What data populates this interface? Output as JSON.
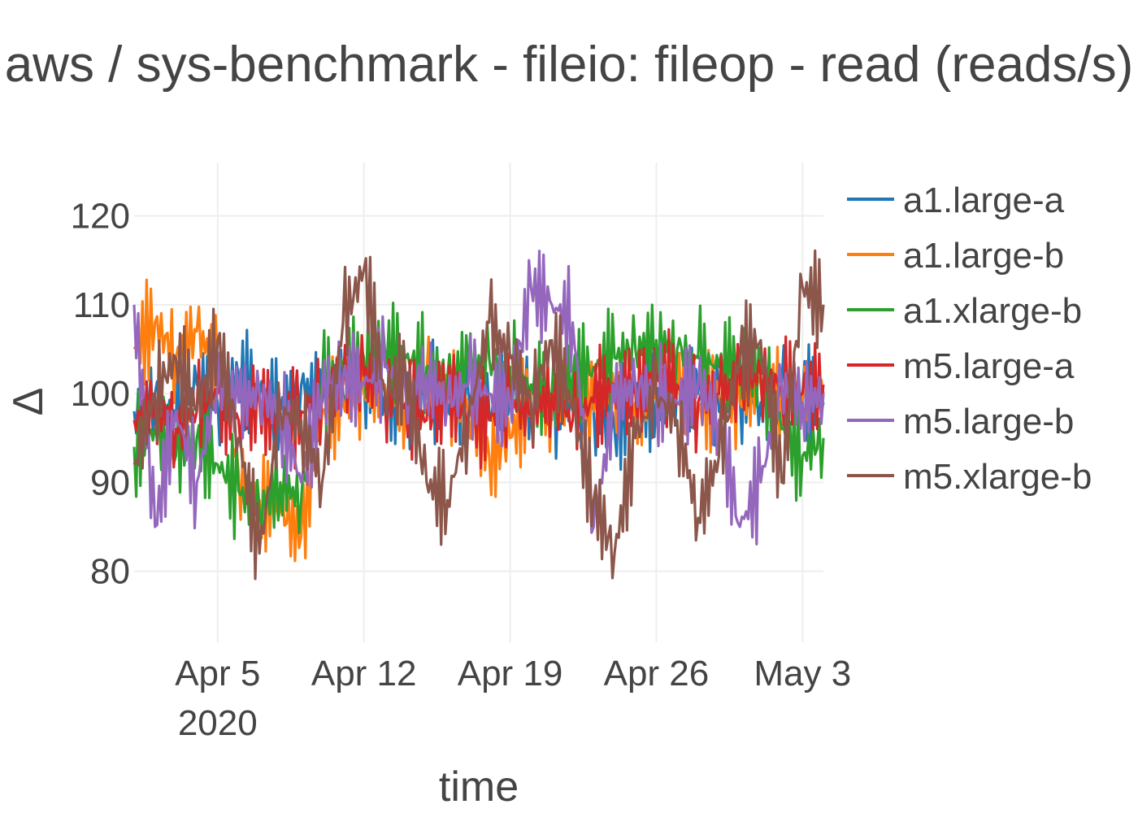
{
  "chart_data": {
    "type": "line",
    "title": "aws / sys-benchmark - fileio: fileop - read (reads/s)",
    "xlabel": "time",
    "ylabel": "Δ",
    "x_range": [
      "2020-04-01",
      "2020-05-04"
    ],
    "ylim": [
      72,
      126
    ],
    "y_ticks": [
      {
        "value": 80,
        "label": "80"
      },
      {
        "value": 90,
        "label": "90"
      },
      {
        "value": 100,
        "label": "100"
      },
      {
        "value": 110,
        "label": "110"
      },
      {
        "value": 120,
        "label": "120"
      }
    ],
    "x_ticks": [
      {
        "date": "2020-04-05",
        "label": "Apr 5",
        "sublabel": "2020"
      },
      {
        "date": "2020-04-12",
        "label": "Apr 12",
        "sublabel": ""
      },
      {
        "date": "2020-04-19",
        "label": "Apr 19",
        "sublabel": ""
      },
      {
        "date": "2020-04-26",
        "label": "Apr 26",
        "sublabel": ""
      },
      {
        "date": "2020-05-03",
        "label": "May 3",
        "sublabel": ""
      }
    ],
    "grid": true,
    "legend_position": "right",
    "series": [
      {
        "name": "a1.large-a",
        "color": "#1f77b4",
        "points": [
          [
            "2020-04-01",
            98
          ],
          [
            "2020-04-02",
            100
          ],
          [
            "2020-04-03",
            97
          ],
          [
            "2020-04-04",
            101
          ],
          [
            "2020-04-05",
            99
          ],
          [
            "2020-04-06",
            102
          ],
          [
            "2020-04-07",
            100
          ],
          [
            "2020-04-08",
            98
          ],
          [
            "2020-04-09",
            101
          ],
          [
            "2020-04-10",
            99
          ],
          [
            "2020-04-11",
            100
          ],
          [
            "2020-04-12",
            102
          ],
          [
            "2020-04-13",
            100
          ],
          [
            "2020-04-14",
            97
          ],
          [
            "2020-04-15",
            101
          ],
          [
            "2020-04-16",
            99
          ],
          [
            "2020-04-17",
            100
          ],
          [
            "2020-04-18",
            98
          ],
          [
            "2020-04-19",
            101
          ],
          [
            "2020-04-20",
            100
          ],
          [
            "2020-04-21",
            97
          ],
          [
            "2020-04-22",
            99
          ],
          [
            "2020-04-23",
            98
          ],
          [
            "2020-04-24",
            96
          ],
          [
            "2020-04-25",
            100
          ],
          [
            "2020-04-26",
            99
          ],
          [
            "2020-04-27",
            101
          ],
          [
            "2020-04-28",
            100
          ],
          [
            "2020-04-29",
            98
          ],
          [
            "2020-04-30",
            100
          ],
          [
            "2020-05-01",
            99
          ],
          [
            "2020-05-02",
            101
          ],
          [
            "2020-05-03",
            100
          ],
          [
            "2020-05-04",
            99
          ]
        ]
      },
      {
        "name": "a1.large-b",
        "color": "#ff7f0e",
        "points": [
          [
            "2020-04-01",
            105
          ],
          [
            "2020-04-02",
            108
          ],
          [
            "2020-04-03",
            104
          ],
          [
            "2020-04-04",
            107
          ],
          [
            "2020-04-05",
            103
          ],
          [
            "2020-04-06",
            91
          ],
          [
            "2020-04-07",
            88
          ],
          [
            "2020-04-08",
            87
          ],
          [
            "2020-04-09",
            84
          ],
          [
            "2020-04-10",
            98
          ],
          [
            "2020-04-11",
            99
          ],
          [
            "2020-04-12",
            100
          ],
          [
            "2020-04-13",
            101
          ],
          [
            "2020-04-14",
            99
          ],
          [
            "2020-04-15",
            102
          ],
          [
            "2020-04-16",
            100
          ],
          [
            "2020-04-17",
            98
          ],
          [
            "2020-04-18",
            93
          ],
          [
            "2020-04-19",
            95
          ],
          [
            "2020-04-20",
            100
          ],
          [
            "2020-04-21",
            99
          ],
          [
            "2020-04-22",
            101
          ],
          [
            "2020-04-23",
            98
          ],
          [
            "2020-04-24",
            100
          ],
          [
            "2020-04-25",
            99
          ],
          [
            "2020-04-26",
            101
          ],
          [
            "2020-04-27",
            100
          ],
          [
            "2020-04-28",
            98
          ],
          [
            "2020-04-29",
            100
          ],
          [
            "2020-04-30",
            99
          ],
          [
            "2020-05-01",
            101
          ],
          [
            "2020-05-02",
            100
          ],
          [
            "2020-05-03",
            99
          ],
          [
            "2020-05-04",
            100
          ]
        ]
      },
      {
        "name": "a1.xlarge-b",
        "color": "#2ca02c",
        "points": [
          [
            "2020-04-01",
            94
          ],
          [
            "2020-04-02",
            96
          ],
          [
            "2020-04-03",
            93
          ],
          [
            "2020-04-04",
            95
          ],
          [
            "2020-04-05",
            92
          ],
          [
            "2020-04-06",
            89
          ],
          [
            "2020-04-07",
            87
          ],
          [
            "2020-04-08",
            90
          ],
          [
            "2020-04-09",
            88
          ],
          [
            "2020-04-10",
            101
          ],
          [
            "2020-04-11",
            103
          ],
          [
            "2020-04-12",
            104
          ],
          [
            "2020-04-13",
            105
          ],
          [
            "2020-04-14",
            104
          ],
          [
            "2020-04-15",
            103
          ],
          [
            "2020-04-16",
            102
          ],
          [
            "2020-04-17",
            103
          ],
          [
            "2020-04-18",
            104
          ],
          [
            "2020-04-19",
            103
          ],
          [
            "2020-04-20",
            101
          ],
          [
            "2020-04-21",
            100
          ],
          [
            "2020-04-22",
            102
          ],
          [
            "2020-04-23",
            103
          ],
          [
            "2020-04-24",
            104
          ],
          [
            "2020-04-25",
            105
          ],
          [
            "2020-04-26",
            106
          ],
          [
            "2020-04-27",
            105
          ],
          [
            "2020-04-28",
            104
          ],
          [
            "2020-04-29",
            103
          ],
          [
            "2020-04-30",
            104
          ],
          [
            "2020-05-01",
            102
          ],
          [
            "2020-05-02",
            96
          ],
          [
            "2020-05-03",
            93
          ],
          [
            "2020-05-04",
            95
          ]
        ]
      },
      {
        "name": "m5.large-a",
        "color": "#d62728",
        "points": [
          [
            "2020-04-01",
            97
          ],
          [
            "2020-04-02",
            99
          ],
          [
            "2020-04-03",
            96
          ],
          [
            "2020-04-04",
            98
          ],
          [
            "2020-04-05",
            100
          ],
          [
            "2020-04-06",
            97
          ],
          [
            "2020-04-07",
            99
          ],
          [
            "2020-04-08",
            96
          ],
          [
            "2020-04-09",
            98
          ],
          [
            "2020-04-10",
            100
          ],
          [
            "2020-04-11",
            101
          ],
          [
            "2020-04-12",
            102
          ],
          [
            "2020-04-13",
            100
          ],
          [
            "2020-04-14",
            99
          ],
          [
            "2020-04-15",
            97
          ],
          [
            "2020-04-16",
            100
          ],
          [
            "2020-04-17",
            98
          ],
          [
            "2020-04-18",
            97
          ],
          [
            "2020-04-19",
            99
          ],
          [
            "2020-04-20",
            98
          ],
          [
            "2020-04-21",
            100
          ],
          [
            "2020-04-22",
            97
          ],
          [
            "2020-04-23",
            99
          ],
          [
            "2020-04-24",
            101
          ],
          [
            "2020-04-25",
            100
          ],
          [
            "2020-04-26",
            102
          ],
          [
            "2020-04-27",
            101
          ],
          [
            "2020-04-28",
            99
          ],
          [
            "2020-04-29",
            100
          ],
          [
            "2020-04-30",
            101
          ],
          [
            "2020-05-01",
            102
          ],
          [
            "2020-05-02",
            101
          ],
          [
            "2020-05-03",
            100
          ],
          [
            "2020-05-04",
            101
          ]
        ]
      },
      {
        "name": "m5.large-b",
        "color": "#9467bd",
        "points": [
          [
            "2020-04-01",
            110
          ],
          [
            "2020-04-02",
            85
          ],
          [
            "2020-04-03",
            98
          ],
          [
            "2020-04-04",
            90
          ],
          [
            "2020-04-05",
            101
          ],
          [
            "2020-04-06",
            99
          ],
          [
            "2020-04-07",
            100
          ],
          [
            "2020-04-08",
            98
          ],
          [
            "2020-04-09",
            90
          ],
          [
            "2020-04-10",
            100
          ],
          [
            "2020-04-11",
            102
          ],
          [
            "2020-04-12",
            101
          ],
          [
            "2020-04-13",
            103
          ],
          [
            "2020-04-14",
            100
          ],
          [
            "2020-04-15",
            102
          ],
          [
            "2020-04-16",
            99
          ],
          [
            "2020-04-17",
            101
          ],
          [
            "2020-04-18",
            100
          ],
          [
            "2020-04-19",
            99
          ],
          [
            "2020-04-20",
            112
          ],
          [
            "2020-04-21",
            110
          ],
          [
            "2020-04-22",
            108
          ],
          [
            "2020-04-23",
            85
          ],
          [
            "2020-04-24",
            99
          ],
          [
            "2020-04-25",
            101
          ],
          [
            "2020-04-26",
            100
          ],
          [
            "2020-04-27",
            99
          ],
          [
            "2020-04-28",
            101
          ],
          [
            "2020-04-29",
            97
          ],
          [
            "2020-04-30",
            85
          ],
          [
            "2020-05-01",
            90
          ],
          [
            "2020-05-02",
            101
          ],
          [
            "2020-05-03",
            99
          ],
          [
            "2020-05-04",
            100
          ]
        ]
      },
      {
        "name": "m5.xlarge-b",
        "color": "#8c564b",
        "points": [
          [
            "2020-04-01",
            92
          ],
          [
            "2020-04-02",
            100
          ],
          [
            "2020-04-03",
            104
          ],
          [
            "2020-04-04",
            98
          ],
          [
            "2020-04-05",
            106
          ],
          [
            "2020-04-06",
            95
          ],
          [
            "2020-04-07",
            82
          ],
          [
            "2020-04-08",
            98
          ],
          [
            "2020-04-09",
            97
          ],
          [
            "2020-04-10",
            90
          ],
          [
            "2020-04-11",
            108
          ],
          [
            "2020-04-12",
            114
          ],
          [
            "2020-04-13",
            100
          ],
          [
            "2020-04-14",
            102
          ],
          [
            "2020-04-15",
            90
          ],
          [
            "2020-04-16",
            88
          ],
          [
            "2020-04-17",
            97
          ],
          [
            "2020-04-18",
            108
          ],
          [
            "2020-04-19",
            104
          ],
          [
            "2020-04-20",
            99
          ],
          [
            "2020-04-21",
            106
          ],
          [
            "2020-04-22",
            98
          ],
          [
            "2020-04-23",
            88
          ],
          [
            "2020-04-24",
            82
          ],
          [
            "2020-04-25",
            95
          ],
          [
            "2020-04-26",
            100
          ],
          [
            "2020-04-27",
            97
          ],
          [
            "2020-04-28",
            86
          ],
          [
            "2020-04-29",
            93
          ],
          [
            "2020-04-30",
            104
          ],
          [
            "2020-05-01",
            106
          ],
          [
            "2020-05-02",
            90
          ],
          [
            "2020-05-03",
            112
          ],
          [
            "2020-05-04",
            110
          ]
        ]
      }
    ]
  }
}
